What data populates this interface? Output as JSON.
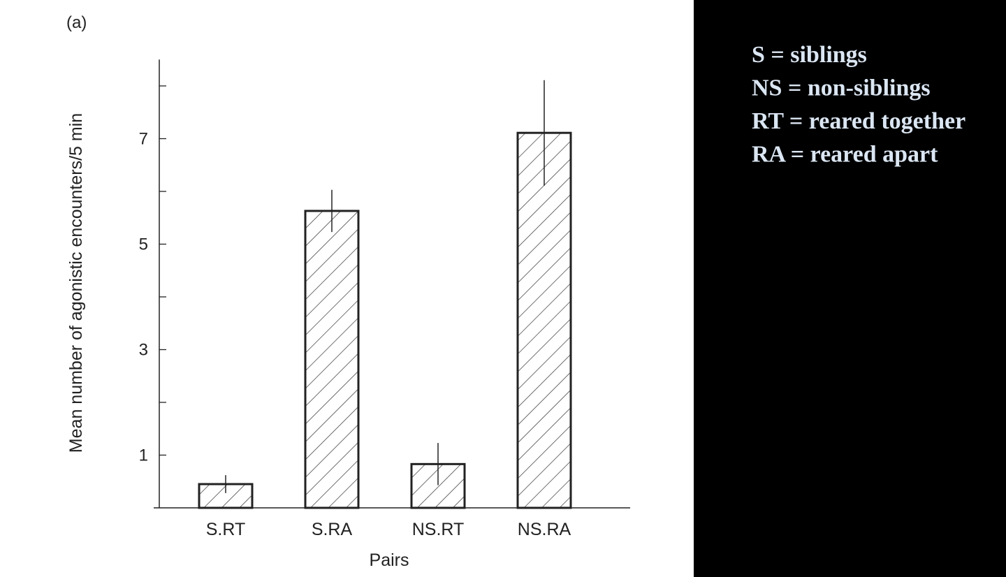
{
  "chart_data": {
    "type": "bar",
    "panel_label": "(a)",
    "ylabel": "Mean number of agonistic encounters/5 min",
    "xlabel": "Pairs",
    "categories": [
      "S.RT",
      "S.RA",
      "NS.RT",
      "NS.RA"
    ],
    "values": [
      0.45,
      5.63,
      0.83,
      7.11
    ],
    "errors": [
      0.17,
      0.4,
      0.4,
      1.0
    ],
    "color": "#222222",
    "ylim": [
      0,
      8.5
    ],
    "yticks": [
      1,
      3,
      5,
      7
    ],
    "minor_yticks": [
      2,
      4,
      6,
      8
    ],
    "annotations": [
      "S = siblings",
      "NS = non-siblings",
      "RT = reared together",
      "RA = reared apart"
    ]
  }
}
